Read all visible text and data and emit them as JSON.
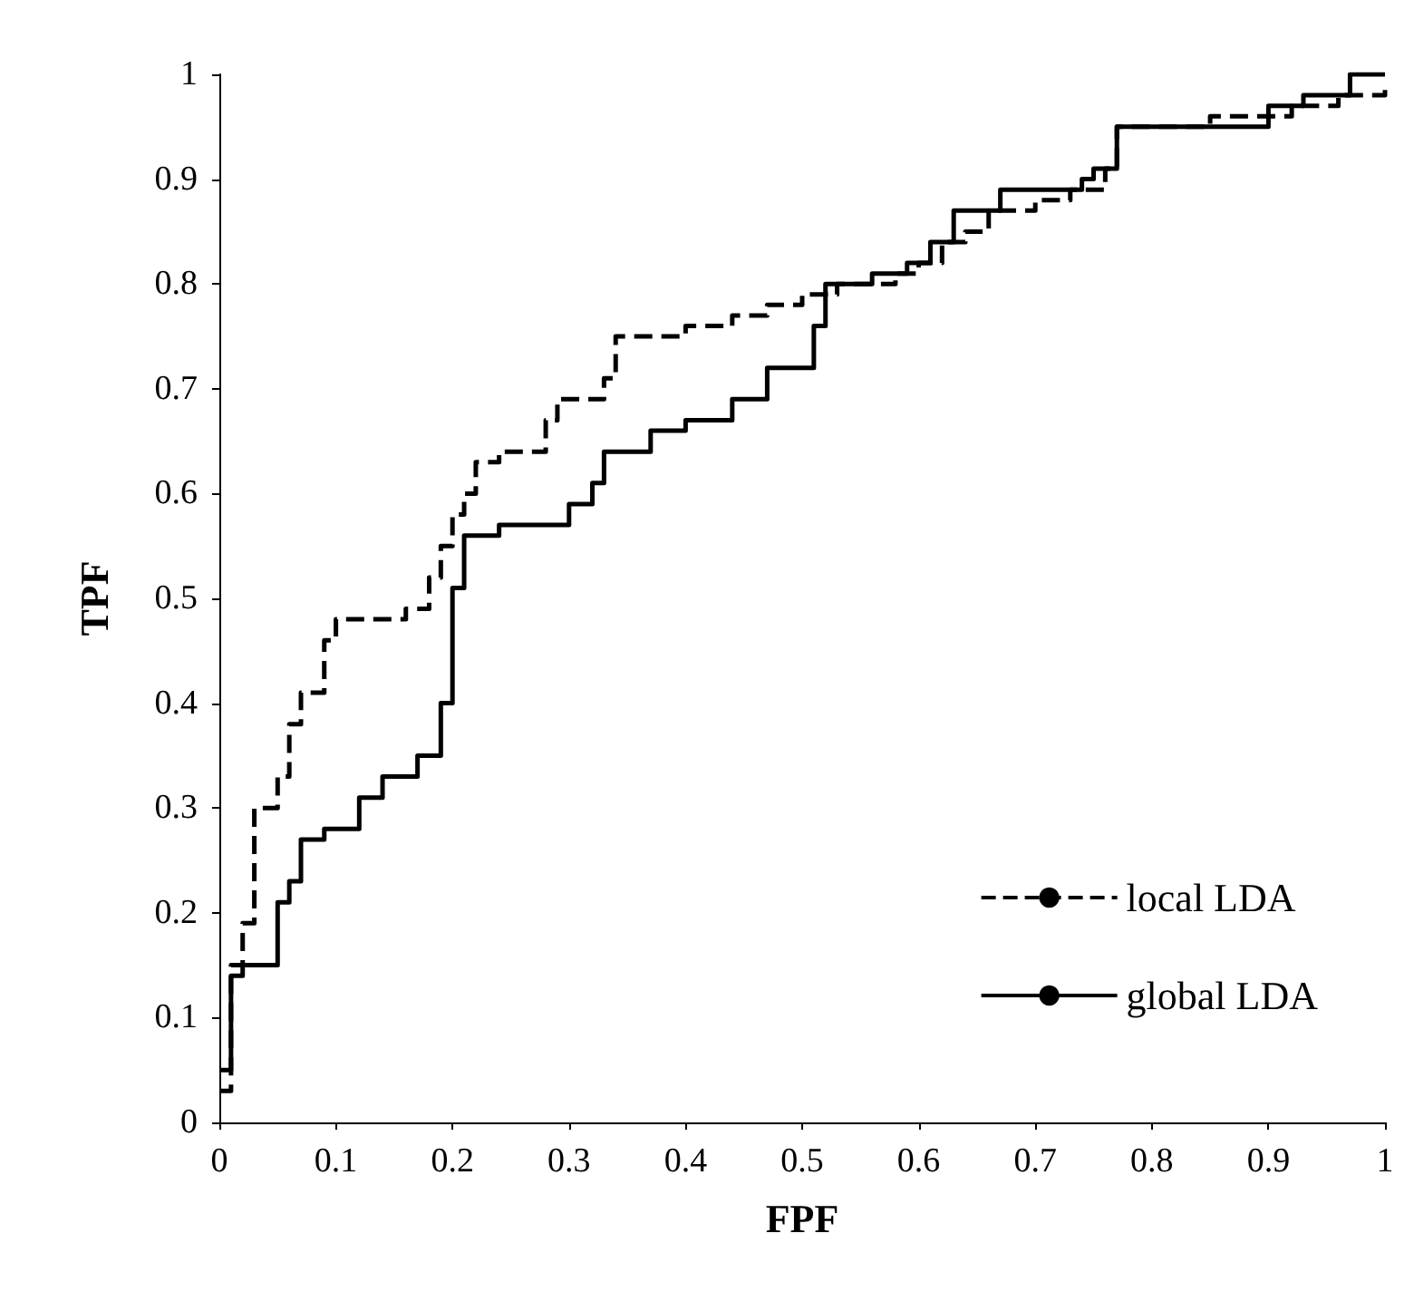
{
  "chart_data": {
    "type": "step",
    "xlabel": "FPF",
    "ylabel": "TPF",
    "xlim": [
      0,
      1
    ],
    "ylim": [
      0,
      1
    ],
    "xticks": [
      0,
      0.1,
      0.2,
      0.3,
      0.4,
      0.5,
      0.6,
      0.7,
      0.8,
      0.9,
      1
    ],
    "yticks": [
      0,
      0.1,
      0.2,
      0.3,
      0.4,
      0.5,
      0.6,
      0.7,
      0.8,
      0.9,
      1
    ],
    "grid": false,
    "legend": "bottom right",
    "marker": "none",
    "series": [
      {
        "name": "local LDA",
        "color": "#000000",
        "line_style": "dashed",
        "x": [
          0,
          0.01,
          0.02,
          0.03,
          0.05,
          0.06,
          0.07,
          0.09,
          0.1,
          0.16,
          0.18,
          0.19,
          0.2,
          0.21,
          0.22,
          0.24,
          0.28,
          0.29,
          0.33,
          0.34,
          0.4,
          0.44,
          0.47,
          0.5,
          0.53,
          0.58,
          0.6,
          0.62,
          0.64,
          0.66,
          0.7,
          0.73,
          0.76,
          0.77,
          0.85,
          0.92,
          0.96,
          1
        ],
        "values": [
          0.03,
          0.15,
          0.19,
          0.3,
          0.33,
          0.38,
          0.41,
          0.46,
          0.48,
          0.49,
          0.52,
          0.55,
          0.58,
          0.6,
          0.63,
          0.64,
          0.67,
          0.69,
          0.71,
          0.75,
          0.76,
          0.77,
          0.78,
          0.79,
          0.8,
          0.81,
          0.82,
          0.84,
          0.85,
          0.87,
          0.88,
          0.89,
          0.91,
          0.95,
          0.96,
          0.97,
          0.98,
          0.99
        ]
      },
      {
        "name": "global LDA",
        "color": "#000000",
        "line_style": "solid",
        "x": [
          0,
          0.01,
          0.02,
          0.05,
          0.06,
          0.07,
          0.09,
          0.12,
          0.14,
          0.17,
          0.19,
          0.2,
          0.21,
          0.24,
          0.3,
          0.32,
          0.33,
          0.37,
          0.4,
          0.44,
          0.47,
          0.51,
          0.52,
          0.56,
          0.59,
          0.61,
          0.63,
          0.67,
          0.74,
          0.75,
          0.77,
          0.9,
          0.93,
          0.97,
          1
        ],
        "values": [
          0.05,
          0.14,
          0.15,
          0.21,
          0.23,
          0.27,
          0.28,
          0.31,
          0.33,
          0.35,
          0.4,
          0.51,
          0.56,
          0.57,
          0.59,
          0.61,
          0.64,
          0.66,
          0.67,
          0.69,
          0.72,
          0.76,
          0.8,
          0.81,
          0.82,
          0.84,
          0.87,
          0.89,
          0.9,
          0.91,
          0.95,
          0.97,
          0.98,
          1,
          1
        ]
      }
    ]
  }
}
